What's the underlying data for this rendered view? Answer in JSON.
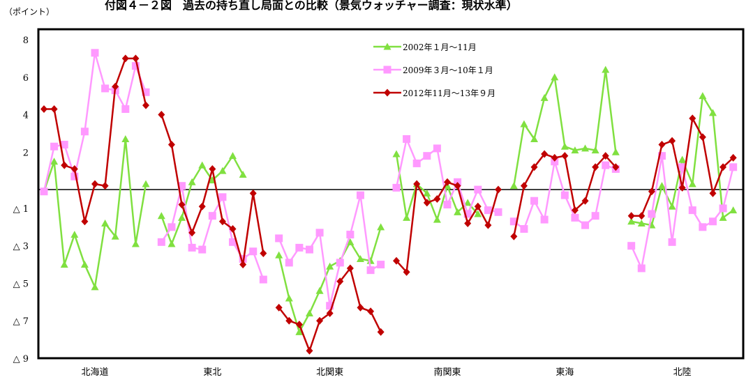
{
  "chart_data": {
    "type": "line",
    "title": "付図４－２図　過去の持ち直し局面との比較（景気ウォッチャー調査：現状水準）",
    "unit_label": "（ポイント）",
    "ylim": [
      -9,
      8
    ],
    "y_ticks": [
      {
        "value": 8,
        "label": "8"
      },
      {
        "value": 6,
        "label": "6"
      },
      {
        "value": 4,
        "label": "4"
      },
      {
        "value": 2,
        "label": "2"
      },
      {
        "value": -1,
        "label": "△ 1"
      },
      {
        "value": -3,
        "label": "△ 3"
      },
      {
        "value": -5,
        "label": "△ 5"
      },
      {
        "value": -7,
        "label": "△ 7"
      },
      {
        "value": -9,
        "label": "△ 9"
      }
    ],
    "zero_line": 0,
    "legend_position": "top-center",
    "categories": [
      "北海道",
      "東北",
      "北関東",
      "南関東",
      "東海",
      "北陸"
    ],
    "series": [
      {
        "name": "2002年１月～11月",
        "color": "#80E040",
        "marker": "triangle",
        "segments": [
          [
            -0.1,
            1.5,
            -4.0,
            -2.4,
            -4.0,
            -5.2,
            -1.8,
            -2.5,
            2.7,
            -2.9,
            0.3
          ],
          [
            -1.4,
            -2.9,
            -1.5,
            0.4,
            1.3,
            0.5,
            1.0,
            1.8,
            0.8
          ],
          [
            -3.5,
            -5.8,
            -7.6,
            -6.6,
            -5.4,
            -4.1,
            -3.8,
            -2.8,
            -3.7,
            -3.8,
            -2.0
          ],
          [
            1.9,
            -1.5,
            0.3,
            -0.2,
            -1.6,
            0.2,
            -1.2,
            -0.7,
            -1.3
          ],
          [
            0.2,
            3.5,
            2.7,
            4.9,
            6.0,
            2.3,
            2.1,
            2.2,
            2.1,
            6.4,
            2.0
          ],
          [
            -1.7,
            -1.8,
            -1.9,
            0.2,
            -0.9,
            1.6,
            0.3,
            5.0,
            4.1,
            -1.5,
            -1.1
          ]
        ]
      },
      {
        "name": "2009年３月～10年１月",
        "color": "#FF99FF",
        "marker": "square",
        "segments": [
          [
            -0.1,
            2.3,
            2.4,
            0.7,
            3.1,
            7.3,
            5.4,
            5.3,
            4.3,
            6.6,
            5.2
          ],
          [
            -2.8,
            -2.0,
            0.2,
            -3.1,
            -3.2,
            -1.4,
            -0.4,
            -2.8,
            -3.7,
            -3.3,
            -4.8
          ],
          [
            -2.6,
            -3.9,
            -3.1,
            -3.2,
            -2.3,
            -6.2,
            -3.9,
            -2.4,
            -0.3,
            -4.3,
            -4.0
          ],
          [
            0.1,
            2.7,
            1.4,
            1.8,
            2.2,
            -0.8,
            0.4,
            -1.3,
            0.0,
            -1.1,
            -1.2
          ],
          [
            -1.7,
            -2.1,
            -0.6,
            -1.6,
            1.5,
            -0.3,
            -1.5,
            -1.9,
            -1.4,
            1.3,
            1.1
          ],
          [
            -3.0,
            -4.2,
            -1.3,
            1.8,
            -2.8,
            1.2,
            -1.1,
            -2.0,
            -1.7,
            -1.0,
            1.2
          ]
        ]
      },
      {
        "name": "2012年11月～13年９月",
        "color": "#C00000",
        "marker": "diamond",
        "segments": [
          [
            4.3,
            4.3,
            1.3,
            1.1,
            -1.7,
            0.3,
            0.2,
            5.5,
            7.0,
            7.0,
            4.5
          ],
          [
            4.0,
            2.4,
            -0.8,
            -2.3,
            -0.9,
            1.1,
            -1.7,
            -2.1,
            -4.0,
            -0.2,
            -3.4
          ],
          [
            -6.3,
            -7.0,
            -7.2,
            -8.6,
            -7.0,
            -6.6,
            -4.9,
            -4.2,
            -6.3,
            -6.5,
            -7.6
          ],
          [
            -3.8,
            -4.4,
            0.3,
            -0.7,
            -0.5,
            0.4,
            0.2,
            -1.8,
            -0.9,
            -1.9,
            0.0
          ],
          [
            -2.5,
            0.2,
            1.2,
            1.9,
            1.7,
            1.8,
            -1.1,
            -0.6,
            1.2,
            1.8,
            1.2
          ],
          [
            -1.4,
            -1.4,
            -0.1,
            2.4,
            2.6,
            0.1,
            3.8,
            2.8,
            -0.2,
            1.2,
            1.7
          ]
        ]
      }
    ]
  }
}
